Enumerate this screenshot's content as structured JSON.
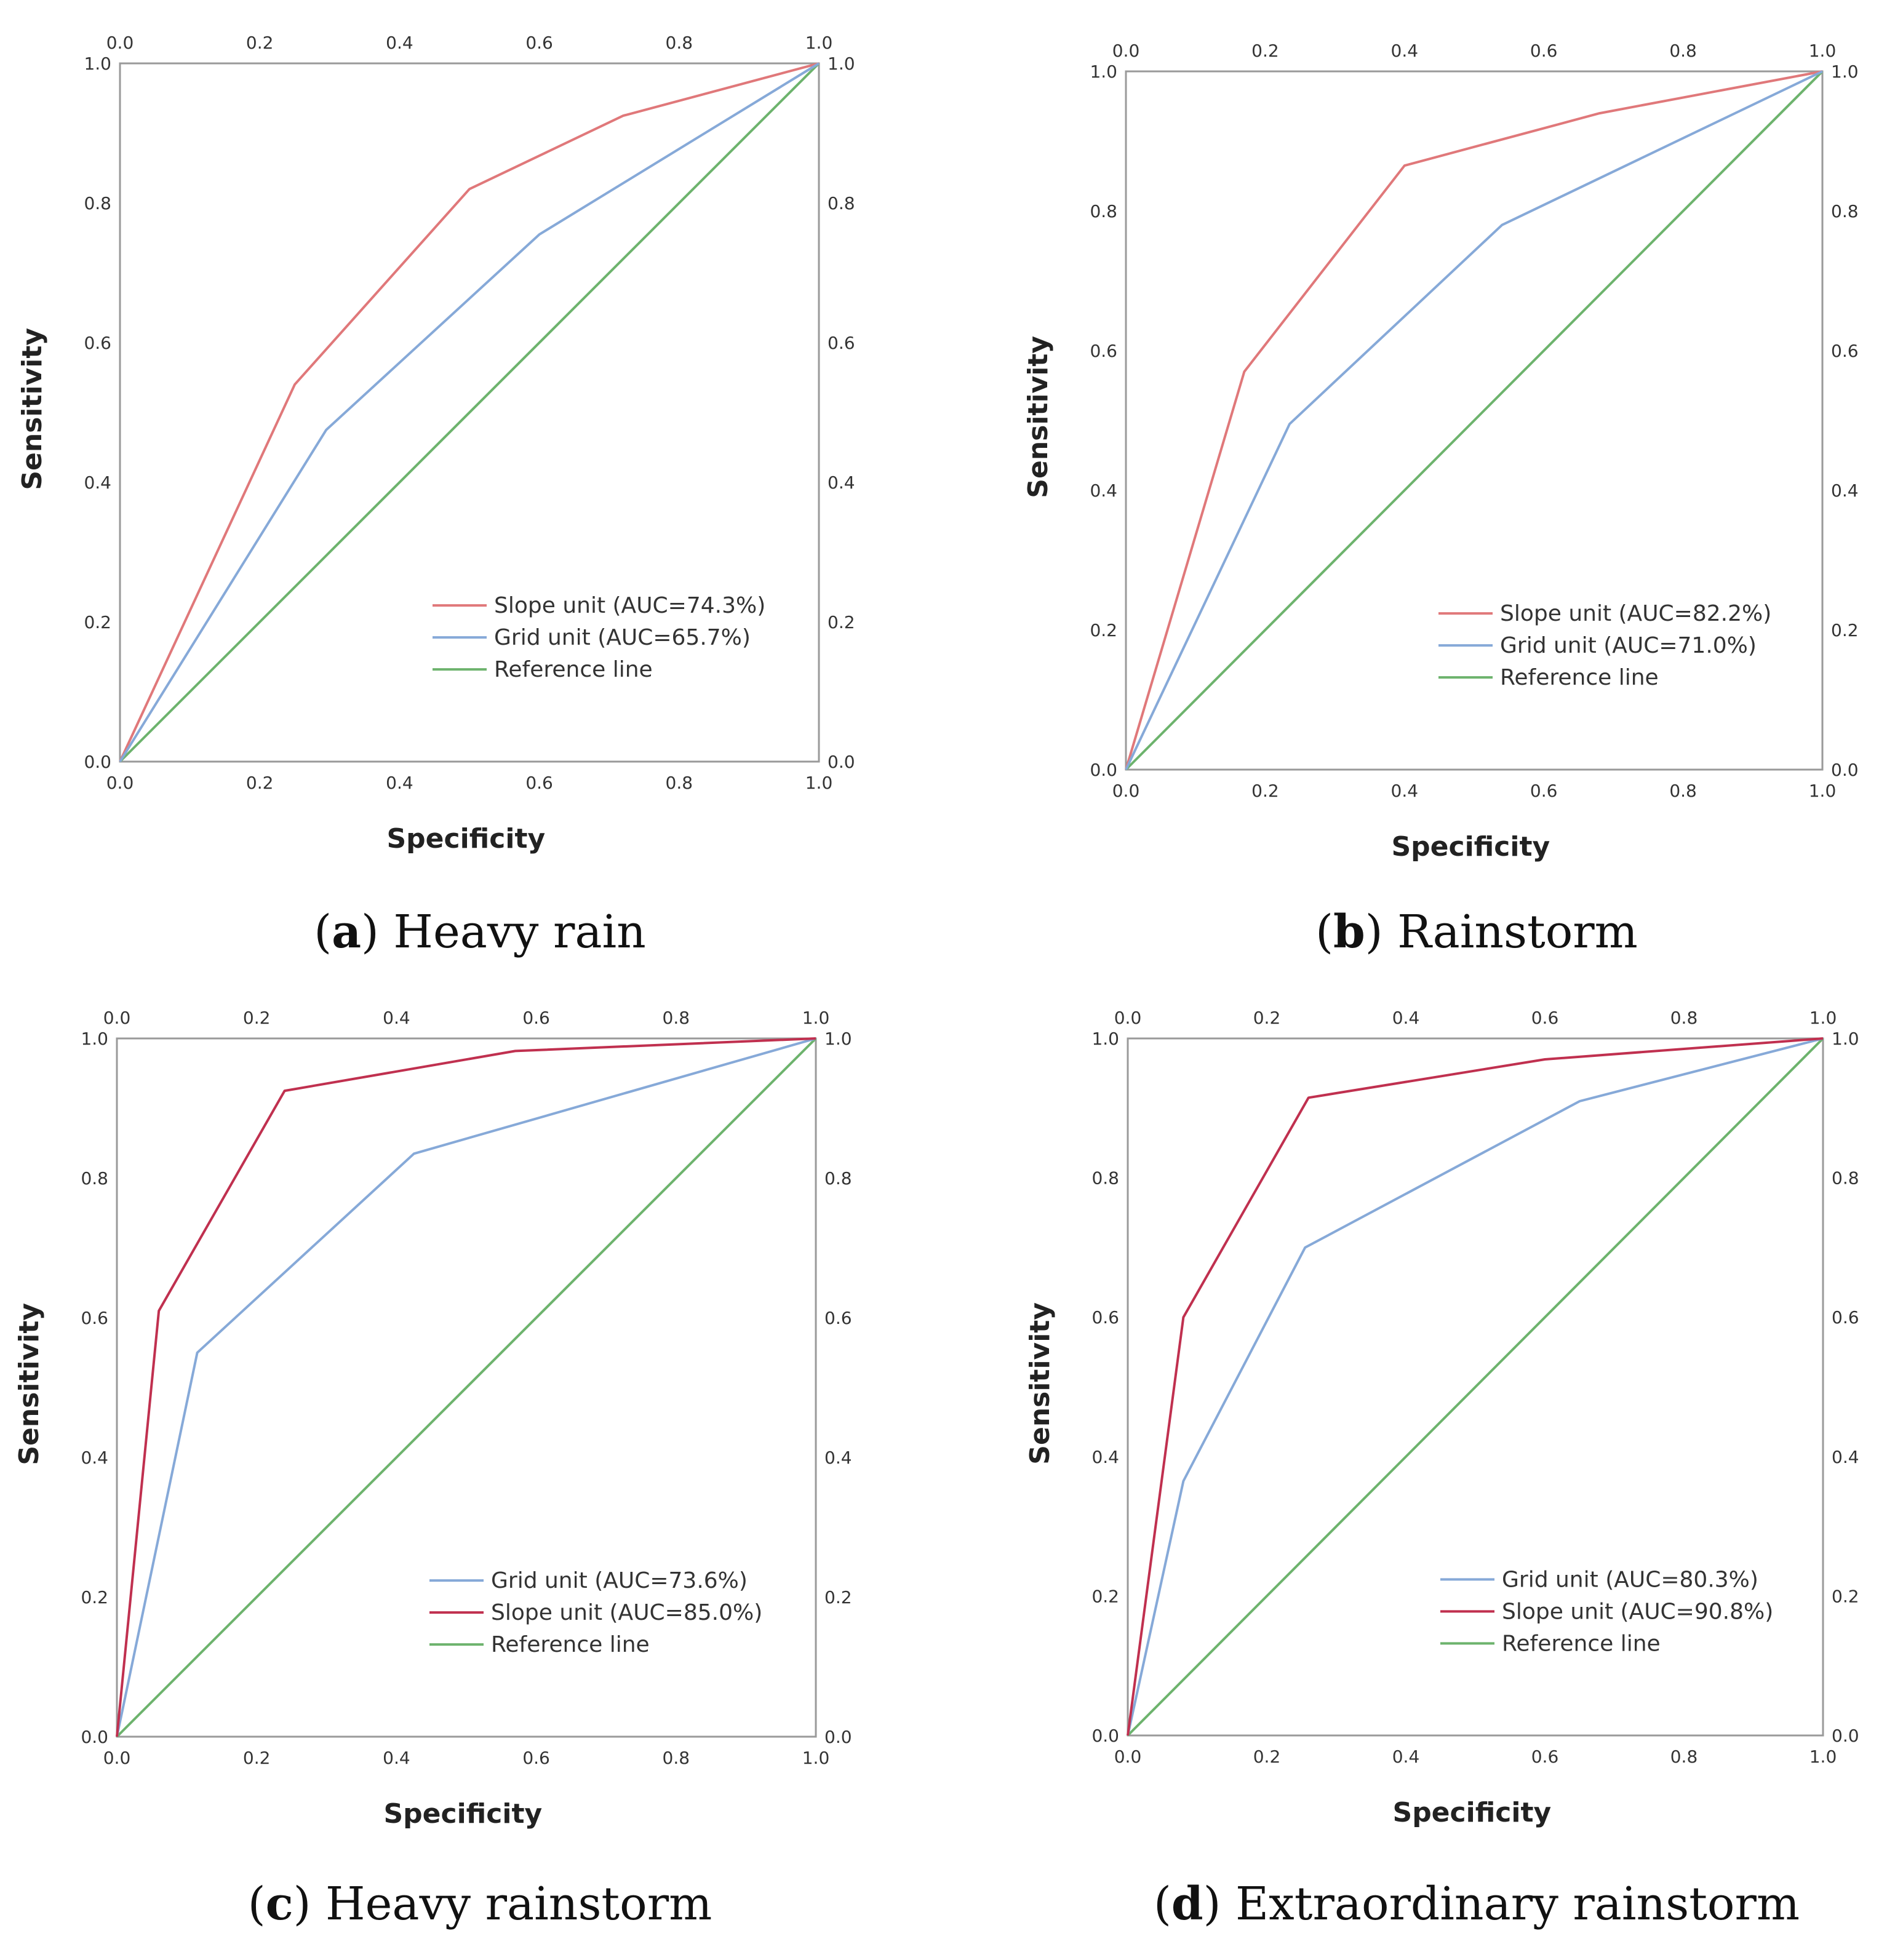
{
  "figure": {
    "colors": {
      "slope_light": "#e0787a",
      "slope_dark": "#c0304f",
      "grid": "#86a9d8",
      "reference": "#6db36d",
      "frame": "#9a9a9a"
    }
  },
  "chart_data": [
    {
      "type": "line",
      "panel_letter": "a",
      "caption": "Heavy rain",
      "xlabel": "Specificity",
      "ylabel": "Sensitivity",
      "xlim": [
        0.0,
        1.0
      ],
      "ylim": [
        0.0,
        1.0
      ],
      "ticks": [
        "0.0",
        "0.2",
        "0.4",
        "0.6",
        "0.8",
        "1.0"
      ],
      "legend_position": "bottom-right",
      "series": [
        {
          "name": "Slope unit (AUC=74.3%)",
          "color": "#e0787a",
          "x": [
            0,
            0.25,
            0.5,
            0.72,
            1
          ],
          "y": [
            0,
            0.54,
            0.82,
            0.925,
            1
          ]
        },
        {
          "name": "Grid unit (AUC=65.7%)",
          "color": "#86a9d8",
          "x": [
            0,
            0.295,
            0.6,
            1
          ],
          "y": [
            0,
            0.475,
            0.755,
            1
          ]
        },
        {
          "name": "Reference line",
          "color": "#6db36d",
          "x": [
            0,
            1
          ],
          "y": [
            0,
            1
          ]
        }
      ]
    },
    {
      "type": "line",
      "panel_letter": "b",
      "caption": "Rainstorm",
      "xlabel": "Specificity",
      "ylabel": "Sensitivity",
      "xlim": [
        0.0,
        1.0
      ],
      "ylim": [
        0.0,
        1.0
      ],
      "ticks": [
        "0.0",
        "0.2",
        "0.4",
        "0.6",
        "0.8",
        "1.0"
      ],
      "legend_position": "bottom-right",
      "series": [
        {
          "name": "Slope unit (AUC=82.2%)",
          "color": "#e0787a",
          "x": [
            0,
            0.17,
            0.4,
            0.68,
            1
          ],
          "y": [
            0,
            0.57,
            0.865,
            0.94,
            1
          ]
        },
        {
          "name": "Grid unit (AUC=71.0%)",
          "color": "#86a9d8",
          "x": [
            0,
            0.235,
            0.54,
            1
          ],
          "y": [
            0,
            0.495,
            0.78,
            1
          ]
        },
        {
          "name": "Reference line",
          "color": "#6db36d",
          "x": [
            0,
            1
          ],
          "y": [
            0,
            1
          ]
        }
      ]
    },
    {
      "type": "line",
      "panel_letter": "c",
      "caption": "Heavy rainstorm",
      "xlabel": "Specificity",
      "ylabel": "Sensitivity",
      "xlim": [
        0.0,
        1.0
      ],
      "ylim": [
        0.0,
        1.0
      ],
      "ticks": [
        "0.0",
        "0.2",
        "0.4",
        "0.6",
        "0.8",
        "1.0"
      ],
      "legend_position": "bottom-right",
      "series": [
        {
          "name": "Grid unit (AUC=73.6%)",
          "color": "#86a9d8",
          "x": [
            0,
            0.115,
            0.425,
            1
          ],
          "y": [
            0,
            0.55,
            0.835,
            1
          ]
        },
        {
          "name": "Slope unit (AUC=85.0%)",
          "color": "#c0304f",
          "x": [
            0,
            0.06,
            0.24,
            0.57,
            1
          ],
          "y": [
            0,
            0.61,
            0.925,
            0.982,
            1
          ]
        },
        {
          "name": "Reference line",
          "color": "#6db36d",
          "x": [
            0,
            1
          ],
          "y": [
            0,
            1
          ]
        }
      ]
    },
    {
      "type": "line",
      "panel_letter": "d",
      "caption": "Extraordinary rainstorm",
      "xlabel": "Specificity",
      "ylabel": "Sensitivity",
      "xlim": [
        0.0,
        1.0
      ],
      "ylim": [
        0.0,
        1.0
      ],
      "ticks": [
        "0.0",
        "0.2",
        "0.4",
        "0.6",
        "0.8",
        "1.0"
      ],
      "legend_position": "bottom-right",
      "series": [
        {
          "name": "Grid unit (AUC=80.3%)",
          "color": "#86a9d8",
          "x": [
            0,
            0.08,
            0.255,
            0.65,
            1
          ],
          "y": [
            0,
            0.365,
            0.7,
            0.91,
            1
          ]
        },
        {
          "name": "Slope unit (AUC=90.8%)",
          "color": "#c0304f",
          "x": [
            0,
            0.08,
            0.26,
            0.6,
            1
          ],
          "y": [
            0,
            0.6,
            0.915,
            0.97,
            1
          ]
        },
        {
          "name": "Reference line",
          "color": "#6db36d",
          "x": [
            0,
            1
          ],
          "y": [
            0,
            1
          ]
        }
      ]
    }
  ]
}
